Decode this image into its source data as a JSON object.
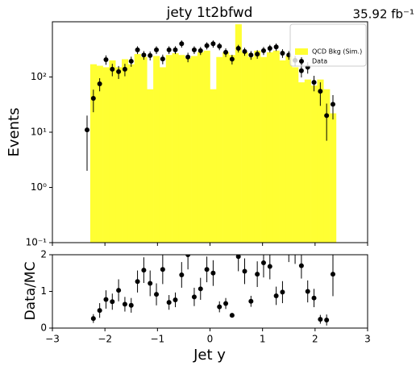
{
  "chart_data": [
    {
      "type": "histogram",
      "title": "jety  1t2bfwd",
      "annotation": "35.92 fb⁻¹",
      "ylabel": "Events",
      "log_y": true,
      "legend": "upper right",
      "bins": [
        -2.4,
        -2.28,
        -2.16,
        -2.04,
        -1.92,
        -1.8,
        -1.68,
        -1.56,
        -1.44,
        -1.32,
        -1.2,
        -1.08,
        -0.96,
        -0.84,
        -0.72,
        -0.6,
        -0.48,
        -0.36,
        -0.24,
        -0.12,
        0,
        0.12,
        0.24,
        0.36,
        0.48,
        0.6,
        0.72,
        0.84,
        0.96,
        1.08,
        1.2,
        1.32,
        1.44,
        1.56,
        1.68,
        1.8,
        1.92,
        2.04,
        2.16,
        2.28,
        2.4
      ],
      "series": [
        {
          "name": "QCD Bkg (Sim.)",
          "color": "#ffff33",
          "values": [
            0,
            170,
            160,
            150,
            200,
            150,
            210,
            170,
            260,
            230,
            60,
            240,
            150,
            250,
            270,
            250,
            220,
            240,
            280,
            300,
            60,
            230,
            280,
            250,
            900,
            280,
            230,
            300,
            230,
            280,
            300,
            200,
            240,
            150,
            80,
            90,
            70,
            90,
            60,
            22
          ]
        },
        {
          "name": "Data",
          "color": "#000000",
          "values": [
            11,
            41,
            75,
            206,
            138,
            125,
            138,
            193,
            310,
            250,
            245,
            310,
            212,
            310,
            310,
            400,
            230,
            310,
            300,
            370,
            400,
            360,
            280,
            210,
            330,
            290,
            250,
            260,
            300,
            330,
            350,
            270,
            250,
            200,
            130,
            150,
            80,
            55,
            20,
            32
          ],
          "errors": [
            9,
            18,
            20,
            40,
            35,
            33,
            35,
            40,
            50,
            45,
            45,
            50,
            42,
            50,
            50,
            60,
            45,
            50,
            50,
            55,
            60,
            55,
            50,
            42,
            52,
            48,
            45,
            46,
            50,
            52,
            55,
            48,
            45,
            40,
            32,
            35,
            25,
            25,
            13,
            15
          ]
        }
      ],
      "xlim": [
        -3,
        3
      ],
      "ylim": [
        0.1,
        1000
      ],
      "yticks": [
        {
          "value": 0.1,
          "label": "10⁻¹"
        },
        {
          "value": 1,
          "label": "10⁰"
        },
        {
          "value": 10,
          "label": "10¹"
        },
        {
          "value": 100,
          "label": "10²"
        }
      ]
    },
    {
      "type": "scatter",
      "ylabel": "Data/MC",
      "xlabel": "Jet y",
      "color": "#000000",
      "bins": [
        -2.4,
        -2.28,
        -2.16,
        -2.04,
        -1.92,
        -1.8,
        -1.68,
        -1.56,
        -1.44,
        -1.32,
        -1.2,
        -1.08,
        -0.96,
        -0.84,
        -0.72,
        -0.6,
        -0.48,
        -0.36,
        -0.24,
        -0.12,
        0,
        0.12,
        0.24,
        0.36,
        0.48,
        0.6,
        0.72,
        0.84,
        0.96,
        1.08,
        1.2,
        1.32,
        1.44,
        1.56,
        1.68,
        1.8,
        1.92,
        2.04,
        2.16,
        2.28,
        2.4
      ],
      "values": [
        null,
        0.26,
        0.48,
        0.78,
        0.72,
        1.03,
        0.65,
        0.62,
        1.27,
        1.58,
        1.22,
        0.92,
        1.6,
        0.7,
        0.77,
        1.45,
        2.0,
        0.85,
        1.07,
        1.6,
        1.5,
        0.58,
        0.67,
        0.35,
        1.95,
        1.55,
        0.73,
        1.47,
        1.78,
        1.68,
        0.88,
        0.98,
        2.3,
        2.2,
        1.7,
        1.0,
        0.82,
        0.24,
        0.22,
        1.47
      ],
      "errors": [
        null,
        0.12,
        0.2,
        0.25,
        0.22,
        0.3,
        0.2,
        0.2,
        0.3,
        0.35,
        0.35,
        0.3,
        0.4,
        0.2,
        0.2,
        0.35,
        0.4,
        0.25,
        0.3,
        0.35,
        0.35,
        0.15,
        0.15,
        0.05,
        0.4,
        0.35,
        0.15,
        0.35,
        0.4,
        0.35,
        0.25,
        0.3,
        0.5,
        0.45,
        0.35,
        0.3,
        0.25,
        0.12,
        0.15,
        0.6
      ],
      "xlim": [
        -3,
        3
      ],
      "ylim": [
        0,
        2
      ],
      "xticks": [
        {
          "value": -3,
          "label": "−3"
        },
        {
          "value": -2,
          "label": "−2"
        },
        {
          "value": -1,
          "label": "−1"
        },
        0,
        1,
        2,
        3
      ],
      "yticks": [
        0,
        1,
        2
      ]
    }
  ]
}
